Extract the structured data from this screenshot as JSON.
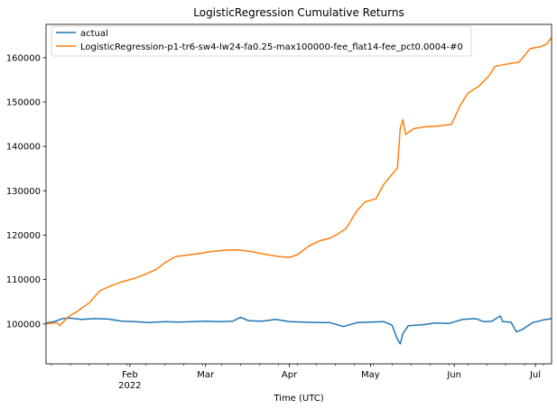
{
  "chart_data": {
    "type": "line",
    "title": "LogisticRegression Cumulative Returns",
    "xlabel": "Time (UTC)",
    "ylabel": "",
    "xlim": [
      "2022-01-01",
      "2022-07-07"
    ],
    "ylim": [
      91000,
      167500
    ],
    "grid": false,
    "legend_position": "top-left",
    "x_ticks": [
      {
        "date": "2022-02-01",
        "label": "Feb",
        "sublabel": "2022"
      },
      {
        "date": "2022-03-01",
        "label": "Mar",
        "sublabel": ""
      },
      {
        "date": "2022-04-01",
        "label": "Apr",
        "sublabel": ""
      },
      {
        "date": "2022-05-01",
        "label": "May",
        "sublabel": ""
      },
      {
        "date": "2022-06-01",
        "label": "Jun",
        "sublabel": ""
      },
      {
        "date": "2022-07-01",
        "label": "Jul",
        "sublabel": ""
      }
    ],
    "y_ticks": [
      {
        "value": 100000,
        "label": "100000"
      },
      {
        "value": 110000,
        "label": "110000"
      },
      {
        "value": 120000,
        "label": "120000"
      },
      {
        "value": 130000,
        "label": "130000"
      },
      {
        "value": 140000,
        "label": "140000"
      },
      {
        "value": 150000,
        "label": "150000"
      },
      {
        "value": 160000,
        "label": "160000"
      }
    ],
    "series": [
      {
        "name": "actual",
        "color": "#1f77b4",
        "points": [
          [
            "2022-01-01",
            100200
          ],
          [
            "2022-01-04",
            100500
          ],
          [
            "2022-01-07",
            101200
          ],
          [
            "2022-01-10",
            101300
          ],
          [
            "2022-01-14",
            101000
          ],
          [
            "2022-01-19",
            101200
          ],
          [
            "2022-01-24",
            101100
          ],
          [
            "2022-01-29",
            100600
          ],
          [
            "2022-02-03",
            100500
          ],
          [
            "2022-02-08",
            100300
          ],
          [
            "2022-02-14",
            100500
          ],
          [
            "2022-02-19",
            100400
          ],
          [
            "2022-02-24",
            100500
          ],
          [
            "2022-03-01",
            100600
          ],
          [
            "2022-03-06",
            100500
          ],
          [
            "2022-03-11",
            100600
          ],
          [
            "2022-03-14",
            101500
          ],
          [
            "2022-03-17",
            100700
          ],
          [
            "2022-03-22",
            100600
          ],
          [
            "2022-03-27",
            101000
          ],
          [
            "2022-04-01",
            100500
          ],
          [
            "2022-04-06",
            100400
          ],
          [
            "2022-04-11",
            100300
          ],
          [
            "2022-04-16",
            100300
          ],
          [
            "2022-04-21",
            99400
          ],
          [
            "2022-04-26",
            100300
          ],
          [
            "2022-05-01",
            100400
          ],
          [
            "2022-05-06",
            100500
          ],
          [
            "2022-05-09",
            99700
          ],
          [
            "2022-05-11",
            96500
          ],
          [
            "2022-05-12",
            95500
          ],
          [
            "2022-05-13",
            97800
          ],
          [
            "2022-05-15",
            99600
          ],
          [
            "2022-05-20",
            99800
          ],
          [
            "2022-05-25",
            100200
          ],
          [
            "2022-05-30",
            100100
          ],
          [
            "2022-06-04",
            101000
          ],
          [
            "2022-06-09",
            101200
          ],
          [
            "2022-06-12",
            100500
          ],
          [
            "2022-06-15",
            100600
          ],
          [
            "2022-06-18",
            101800
          ],
          [
            "2022-06-19",
            100500
          ],
          [
            "2022-06-22",
            100400
          ],
          [
            "2022-06-24",
            98200
          ],
          [
            "2022-06-26",
            98700
          ],
          [
            "2022-06-30",
            100300
          ],
          [
            "2022-07-04",
            100900
          ],
          [
            "2022-07-07",
            101200
          ]
        ]
      },
      {
        "name": "LogisticRegression-p1-tr6-sw4-lw24-fa0.25-max100000-fee_flat14-fee_pct0.0004-#0",
        "color": "#ff7f0e",
        "points": [
          [
            "2022-01-01",
            100000
          ],
          [
            "2022-01-05",
            100300
          ],
          [
            "2022-01-06",
            99600
          ],
          [
            "2022-01-09",
            101500
          ],
          [
            "2022-01-13",
            103000
          ],
          [
            "2022-01-17",
            104800
          ],
          [
            "2022-01-21",
            107500
          ],
          [
            "2022-01-25",
            108600
          ],
          [
            "2022-01-29",
            109500
          ],
          [
            "2022-02-03",
            110300
          ],
          [
            "2022-02-08",
            111500
          ],
          [
            "2022-02-11",
            112400
          ],
          [
            "2022-02-14",
            113800
          ],
          [
            "2022-02-18",
            115200
          ],
          [
            "2022-02-22",
            115500
          ],
          [
            "2022-02-27",
            115900
          ],
          [
            "2022-03-03",
            116300
          ],
          [
            "2022-03-08",
            116600
          ],
          [
            "2022-03-13",
            116700
          ],
          [
            "2022-03-18",
            116300
          ],
          [
            "2022-03-23",
            115700
          ],
          [
            "2022-03-28",
            115200
          ],
          [
            "2022-04-01",
            115000
          ],
          [
            "2022-04-04",
            115600
          ],
          [
            "2022-04-08",
            117500
          ],
          [
            "2022-04-12",
            118700
          ],
          [
            "2022-04-16",
            119300
          ],
          [
            "2022-04-19",
            120300
          ],
          [
            "2022-04-22",
            121500
          ],
          [
            "2022-04-26",
            125500
          ],
          [
            "2022-04-29",
            127500
          ],
          [
            "2022-05-03",
            128200
          ],
          [
            "2022-05-06",
            131500
          ],
          [
            "2022-05-08",
            133000
          ],
          [
            "2022-05-11",
            135200
          ],
          [
            "2022-05-12",
            144000
          ],
          [
            "2022-05-13",
            146000
          ],
          [
            "2022-05-14",
            142700
          ],
          [
            "2022-05-17",
            144000
          ],
          [
            "2022-05-21",
            144400
          ],
          [
            "2022-05-26",
            144600
          ],
          [
            "2022-05-31",
            145000
          ],
          [
            "2022-06-03",
            149000
          ],
          [
            "2022-06-06",
            152000
          ],
          [
            "2022-06-10",
            153500
          ],
          [
            "2022-06-14",
            156000
          ],
          [
            "2022-06-16",
            158000
          ],
          [
            "2022-06-20",
            158500
          ],
          [
            "2022-06-23",
            158800
          ],
          [
            "2022-06-25",
            159000
          ],
          [
            "2022-06-27",
            160500
          ],
          [
            "2022-06-29",
            162000
          ],
          [
            "2022-07-03",
            162500
          ],
          [
            "2022-07-05",
            163000
          ],
          [
            "2022-07-07",
            164500
          ]
        ]
      }
    ]
  }
}
